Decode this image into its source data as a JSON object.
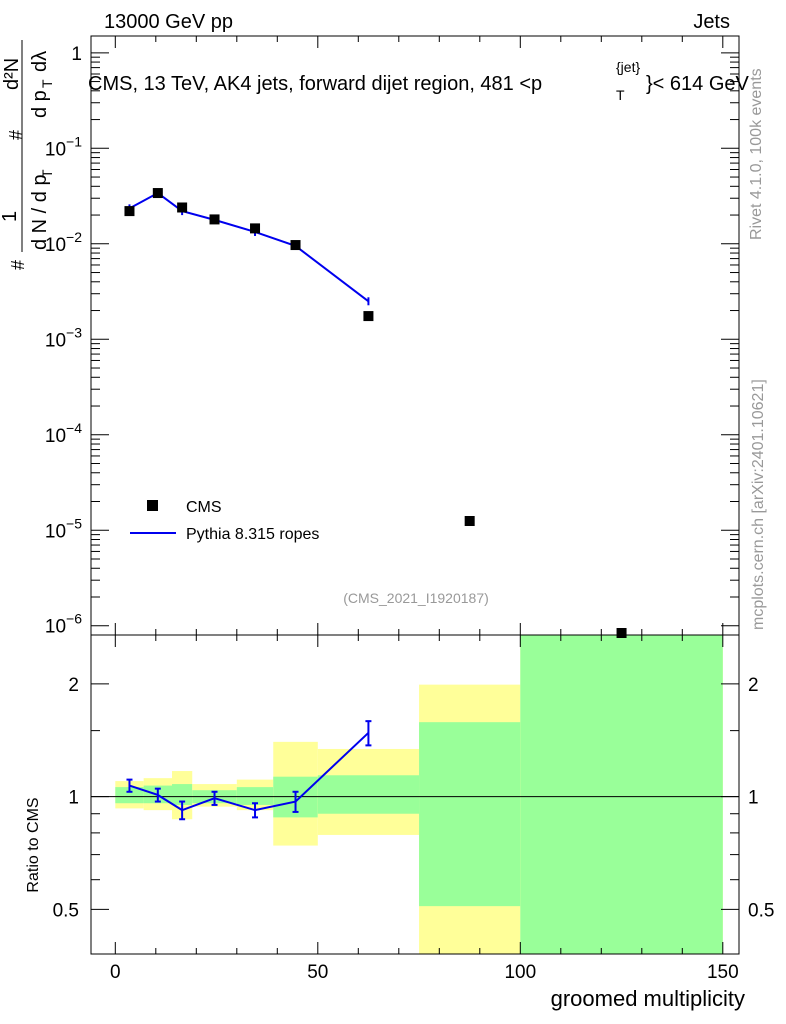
{
  "header": {
    "energy_label": "13000 GeV pp",
    "category_label": "Jets"
  },
  "plot_title": {
    "prefix": "CMS, 13 TeV, AK4 jets, forward dijet region, 481 <p",
    "sup": "{jet}",
    "sub": "T",
    "suffix": "}< 614 GeV"
  },
  "side_labels": {
    "rivet": "Rivet 4.1.0,  100k events",
    "mcplots": "mcplots.cern.ch [arXiv:2401.10621]"
  },
  "analysis_id": "(CMS_2021_I1920187)",
  "colors": {
    "data": "#000000",
    "mc": "#0000ee",
    "band_inner": "#99ff99",
    "band_outer": "#ffff99"
  },
  "chart_data": [
    {
      "type": "scatter",
      "role": "main",
      "yscale": "log",
      "ylim": [
        8e-07,
        1.5
      ],
      "xlim": [
        -6,
        154
      ],
      "ylabel": "#frac{1}{dN / dp_T} #frac{d^2N}{dp_T dλ}",
      "ytick_labels": [
        "1",
        "10^-1",
        "10^-2",
        "10^-3",
        "10^-4",
        "10^-5",
        "10^-6"
      ],
      "legend": [
        "CMS",
        "Pythia 8.315 ropes"
      ],
      "series": [
        {
          "name": "CMS",
          "points": [
            {
              "x": 3.5,
              "y": 0.022
            },
            {
              "x": 10.5,
              "y": 0.034
            },
            {
              "x": 16.5,
              "y": 0.024
            },
            {
              "x": 24.5,
              "y": 0.018
            },
            {
              "x": 34.5,
              "y": 0.0145
            },
            {
              "x": 44.5,
              "y": 0.0097
            },
            {
              "x": 62.5,
              "y": 0.00175
            },
            {
              "x": 87.5,
              "y": 1.25e-05
            },
            {
              "x": 125,
              "y": 7.8e-07
            }
          ]
        },
        {
          "name": "Pythia 8.315 ropes",
          "points": [
            {
              "x": 3.5,
              "y": 0.0235
            },
            {
              "x": 10.5,
              "y": 0.034
            },
            {
              "x": 16.5,
              "y": 0.022
            },
            {
              "x": 24.5,
              "y": 0.0178
            },
            {
              "x": 34.5,
              "y": 0.0133
            },
            {
              "x": 44.5,
              "y": 0.0095
            },
            {
              "x": 62.5,
              "y": 0.0025
            }
          ]
        }
      ]
    },
    {
      "type": "line",
      "role": "ratio",
      "yscale": "log",
      "ylim": [
        0.38,
        2.7
      ],
      "xlim": [
        -6,
        154
      ],
      "xlabel": "groomed multiplicity",
      "ylabel": "Ratio to CMS",
      "xticks": [
        0,
        50,
        100,
        150
      ],
      "xtick_labels": [
        "0",
        "50",
        "100",
        "150"
      ],
      "yticks": [
        0.5,
        1,
        2
      ],
      "ytick_labels": [
        "0.5",
        "1",
        "2"
      ],
      "uncertainty_bands": [
        {
          "x0": 0,
          "x1": 7,
          "inner": [
            0.96,
            1.06
          ],
          "outer": [
            0.93,
            1.1
          ]
        },
        {
          "x0": 7,
          "x1": 14,
          "inner": [
            0.96,
            1.07
          ],
          "outer": [
            0.92,
            1.12
          ]
        },
        {
          "x0": 14,
          "x1": 19,
          "inner": [
            0.95,
            1.08
          ],
          "outer": [
            0.87,
            1.17
          ]
        },
        {
          "x0": 19,
          "x1": 30,
          "inner": [
            0.96,
            1.04
          ],
          "outer": [
            0.94,
            1.08
          ]
        },
        {
          "x0": 30,
          "x1": 39,
          "inner": [
            0.95,
            1.06
          ],
          "outer": [
            0.92,
            1.11
          ]
        },
        {
          "x0": 39,
          "x1": 50,
          "inner": [
            0.88,
            1.13
          ],
          "outer": [
            0.74,
            1.4
          ]
        },
        {
          "x0": 50,
          "x1": 75,
          "inner": [
            0.9,
            1.14
          ],
          "outer": [
            0.79,
            1.34
          ]
        },
        {
          "x0": 75,
          "x1": 100,
          "inner": [
            0.51,
            1.58
          ],
          "outer": [
            0.3,
            1.99
          ]
        },
        {
          "x0": 100,
          "x1": 150,
          "inner": [
            0.3,
            3
          ],
          "outer": [
            0.3,
            3
          ]
        }
      ],
      "series": [
        {
          "name": "Pythia 8.315 ropes / CMS",
          "points": [
            {
              "x": 3.5,
              "y": 1.07,
              "err": 0.04
            },
            {
              "x": 10.5,
              "y": 1.01,
              "err": 0.04
            },
            {
              "x": 16.5,
              "y": 0.92,
              "err": 0.05
            },
            {
              "x": 24.5,
              "y": 0.99,
              "err": 0.04
            },
            {
              "x": 34.5,
              "y": 0.92,
              "err": 0.04
            },
            {
              "x": 44.5,
              "y": 0.97,
              "err": 0.06
            },
            {
              "x": 62.5,
              "y": 1.48,
              "err": 0.11
            }
          ]
        }
      ]
    }
  ]
}
